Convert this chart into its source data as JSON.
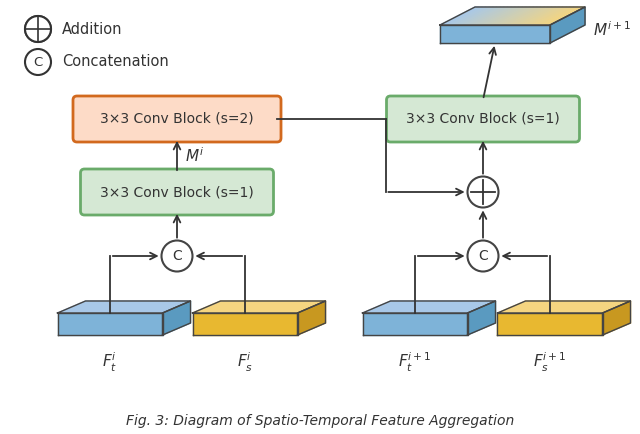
{
  "title": "Fig. 3: Diagram of Spatio-Temporal Feature Aggregation",
  "legend_addition": "Addition",
  "legend_concat": "Concatenation",
  "box_orange_text": "3×3 Conv Block (s=2)",
  "box_green1_text": "3×3 Conv Block (s=1)",
  "box_green2_text": "3×3 Conv Block (s=1)",
  "label_ft_i": "$F_t^i$",
  "label_fs_i": "$F_s^i$",
  "label_ft_i1": "$F_t^{i+1}$",
  "label_fs_i1": "$F_s^{i+1}$",
  "label_Mi": "$M^i$",
  "label_Mi1": "$M^{i+1}$",
  "color_orange_face": "#FDDBC7",
  "color_orange_edge": "#D2691E",
  "color_green_face": "#D5E8D4",
  "color_green_edge": "#6AAB6A",
  "color_blue_top": "#A8C8E8",
  "color_blue_front": "#7EB3D8",
  "color_blue_side": "#5A9AC0",
  "color_yellow_top": "#F5D580",
  "color_yellow_front": "#E8B830",
  "color_yellow_side": "#C89820",
  "color_plate_edge": "#444444",
  "bg_color": "#FFFFFF",
  "arrow_color": "#333333",
  "text_color": "#333333"
}
